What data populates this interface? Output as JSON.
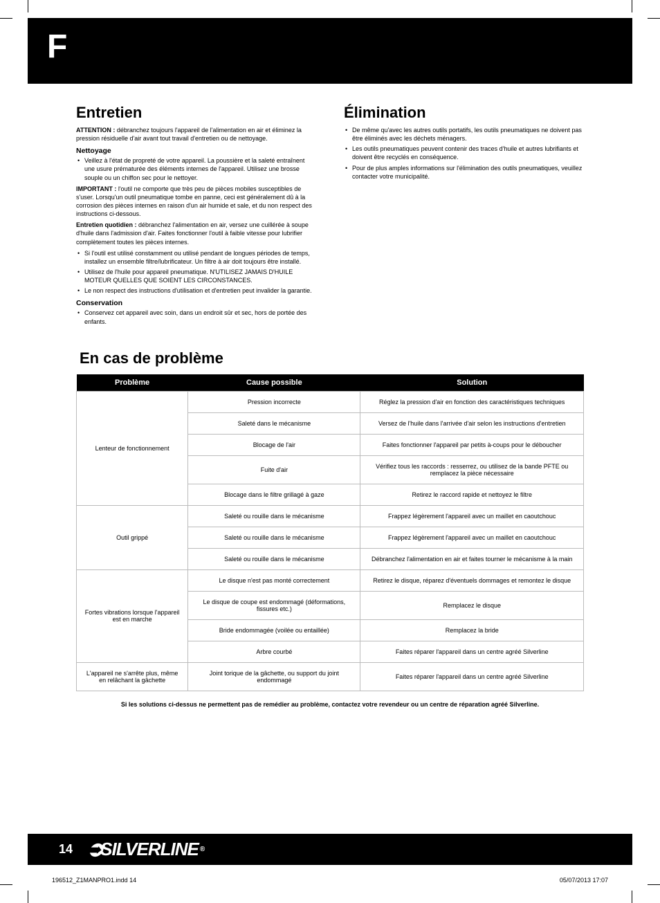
{
  "lang_marker": "F",
  "left": {
    "heading": "Entretien",
    "attention_label": "ATTENTION :",
    "attention_text": " débranchez toujours l'appareil de l'alimentation en air et éliminez la pression résiduelle d'air avant tout travail d'entretien ou de nettoyage.",
    "sub1": "Nettoyage",
    "sub1_bullet": "Veillez à l'état de propreté de votre appareil. La poussière et la saleté entraînent une usure prématurée des éléments internes de l'appareil. Utilisez une brosse souple ou un chiffon sec pour le nettoyer.",
    "important_label": "IMPORTANT :",
    "important_text": " l'outil ne comporte que très peu de pièces mobiles susceptibles de s'user. Lorsqu'un outil pneumatique tombe en panne, ceci est généralement dû à la corrosion des pièces internes en raison d'un air humide et sale, et du non respect des instructions ci-dessous.",
    "daily_label": "Entretien quotidien :",
    "daily_text": " débranchez l'alimentation en air, versez une cuillérée à soupe d'huile dans l'admission d'air. Faites fonctionner l'outil à faible vitesse pour lubrifier complètement toutes les pièces internes.",
    "daily_bullets": [
      "Si l'outil est utilisé constamment ou utilisé pendant de longues périodes de temps, installez un ensemble filtre/lubrificateur. Un filtre à air doit toujours être installé.",
      "Utilisez de l'huile pour appareil pneumatique. N'UTILISEZ JAMAIS D'HUILE MOTEUR QUELLES QUE SOIENT LES CIRCONSTANCES.",
      "Le non respect des instructions d'utilisation et d'entretien peut invalider la garantie."
    ],
    "sub2": "Conservation",
    "sub2_bullet": "Conservez cet appareil avec soin, dans un endroit sûr et sec, hors de portée des enfants."
  },
  "right": {
    "heading": "Élimination",
    "bullets": [
      "De même qu'avec les autres outils portatifs, les outils pneumatiques ne doivent pas être éliminés avec les déchets ménagers.",
      "Les outils pneumatiques peuvent contenir des traces d'huile et autres lubrifiants et doivent être recyclés en conséquence.",
      "Pour de plus amples informations sur l'élimination des outils pneumatiques, veuillez contacter votre municipalité."
    ]
  },
  "troubleshoot": {
    "heading": "En cas de problème",
    "headers": {
      "c1": "Problème",
      "c2": "Cause possible",
      "c3": "Solution"
    },
    "groups": [
      {
        "problem": "Lenteur de fonctionnement",
        "rows": [
          {
            "cause": "Pression incorrecte",
            "solution": "Réglez la pression d'air en fonction des caractéristiques techniques"
          },
          {
            "cause": "Saleté dans le mécanisme",
            "solution": "Versez de l'huile dans l'arrivée d'air selon les instructions d'entretien"
          },
          {
            "cause": "Blocage de l'air",
            "solution": "Faites fonctionner l'appareil par petits à-coups pour le déboucher"
          },
          {
            "cause": "Fuite d'air",
            "solution": "Vérifiez tous les raccords : resserrez, ou utilisez de la bande PFTE ou remplacez la pièce nécessaire"
          },
          {
            "cause": "Blocage dans le filtre grillagé à gaze",
            "solution": "Retirez le raccord rapide et nettoyez le filtre"
          }
        ]
      },
      {
        "problem": "Outil grippé",
        "rows": [
          {
            "cause": "Saleté ou rouille dans le mécanisme",
            "solution": "Frappez légèrement l'appareil avec un maillet en caoutchouc"
          },
          {
            "cause": "Saleté ou rouille dans le mécanisme",
            "solution": "Frappez légèrement l'appareil avec un maillet en caoutchouc"
          },
          {
            "cause": "Saleté ou rouille dans le mécanisme",
            "solution": "Débranchez l'alimentation en air et faites tourner le mécanisme à la main"
          }
        ]
      },
      {
        "problem": "Fortes vibrations lorsque l'appareil est en marche",
        "rows": [
          {
            "cause": "Le disque n'est pas monté correctement",
            "solution": "Retirez le disque, réparez d'éventuels dommages et remontez le disque"
          },
          {
            "cause": "Le disque de coupe est endommagé (déformations, fissures etc.)",
            "solution": "Remplacez le disque"
          },
          {
            "cause": "Bride endommagée (voilée ou entaillée)",
            "solution": "Remplacez la bride"
          },
          {
            "cause": "Arbre courbé",
            "solution": "Faites réparer l'appareil dans un centre agréé Silverline"
          }
        ]
      },
      {
        "problem": "L'appareil ne s'arrête plus, même en relâchant la gâchette",
        "rows": [
          {
            "cause": "Joint torique de la gâchette, ou support du joint endommagé",
            "solution": "Faites réparer l'appareil dans un centre agréé Silverline"
          }
        ]
      }
    ],
    "footer": "Si les solutions ci-dessus ne permettent pas de remédier au problème, contactez votre revendeur ou un centre de réparation agréé Silverline."
  },
  "page_number": "14",
  "brand": "SILVERLINE",
  "print_file": "196512_Z1MANPRO1.indd   14",
  "print_date": "05/07/2013   17:07"
}
